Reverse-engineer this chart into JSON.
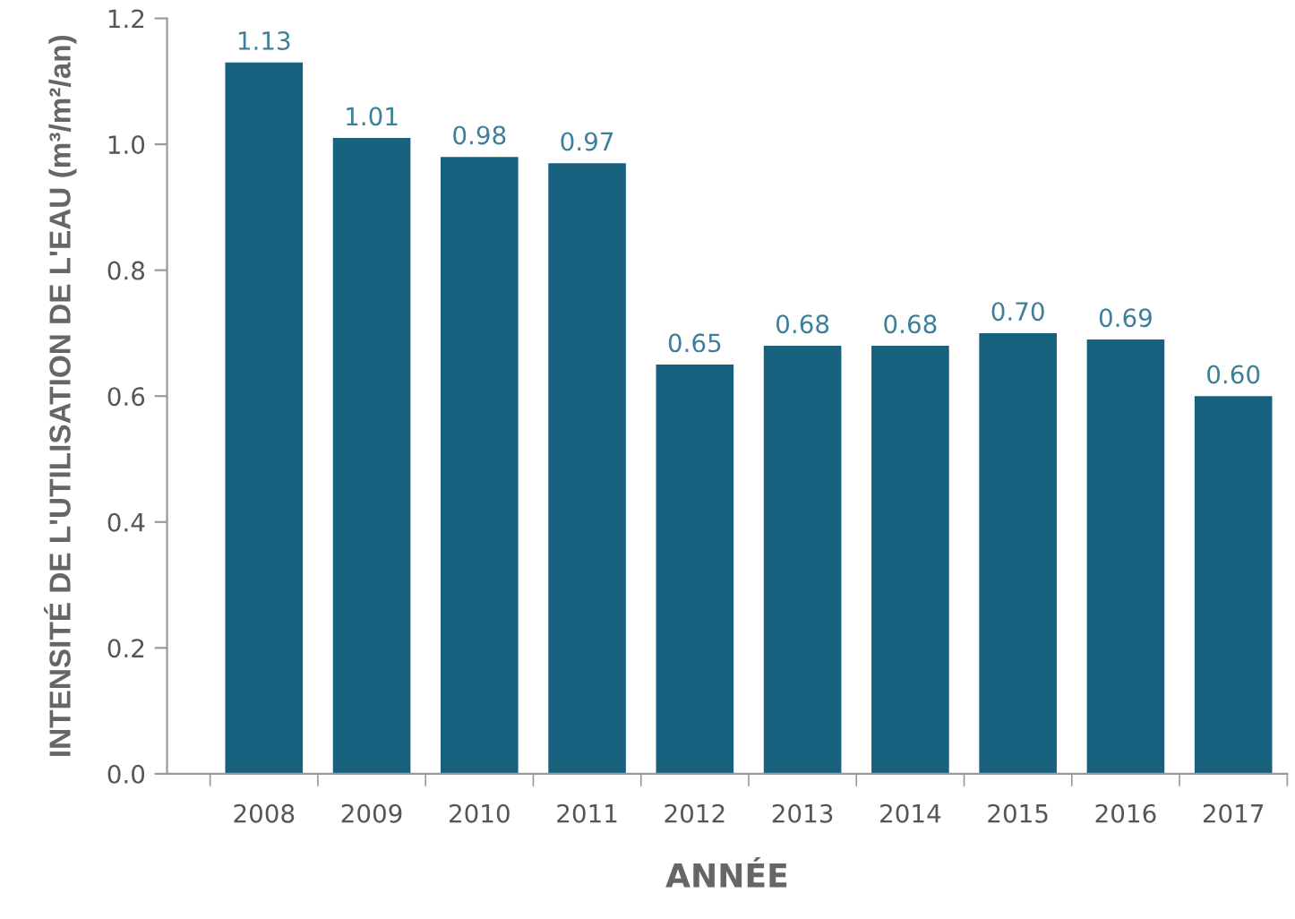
{
  "chart_data": {
    "type": "bar",
    "categories": [
      "2008",
      "2009",
      "2010",
      "2011",
      "2012",
      "2013",
      "2014",
      "2015",
      "2016",
      "2017"
    ],
    "values": [
      1.13,
      1.01,
      0.98,
      0.97,
      0.65,
      0.68,
      0.68,
      0.7,
      0.69,
      0.6
    ],
    "value_labels": [
      "1.13",
      "1.01",
      "0.98",
      "0.97",
      "0.65",
      "0.68",
      "0.68",
      "0.70",
      "0.69",
      "0.60"
    ],
    "color": "#17607e",
    "xlabel": "ANNÉE",
    "ylabel": "INTENSITÉ DE L'UTILISATION DE L'EAU (m³/m²/an)",
    "ylim": [
      0,
      1.2
    ],
    "yticks": [
      {
        "value": 0,
        "label": "0.0"
      },
      0.2,
      0.4,
      0.6,
      0.8,
      {
        "value": 1.0,
        "label": "1.0"
      },
      1.2
    ],
    "grid": false,
    "legend": false
  }
}
